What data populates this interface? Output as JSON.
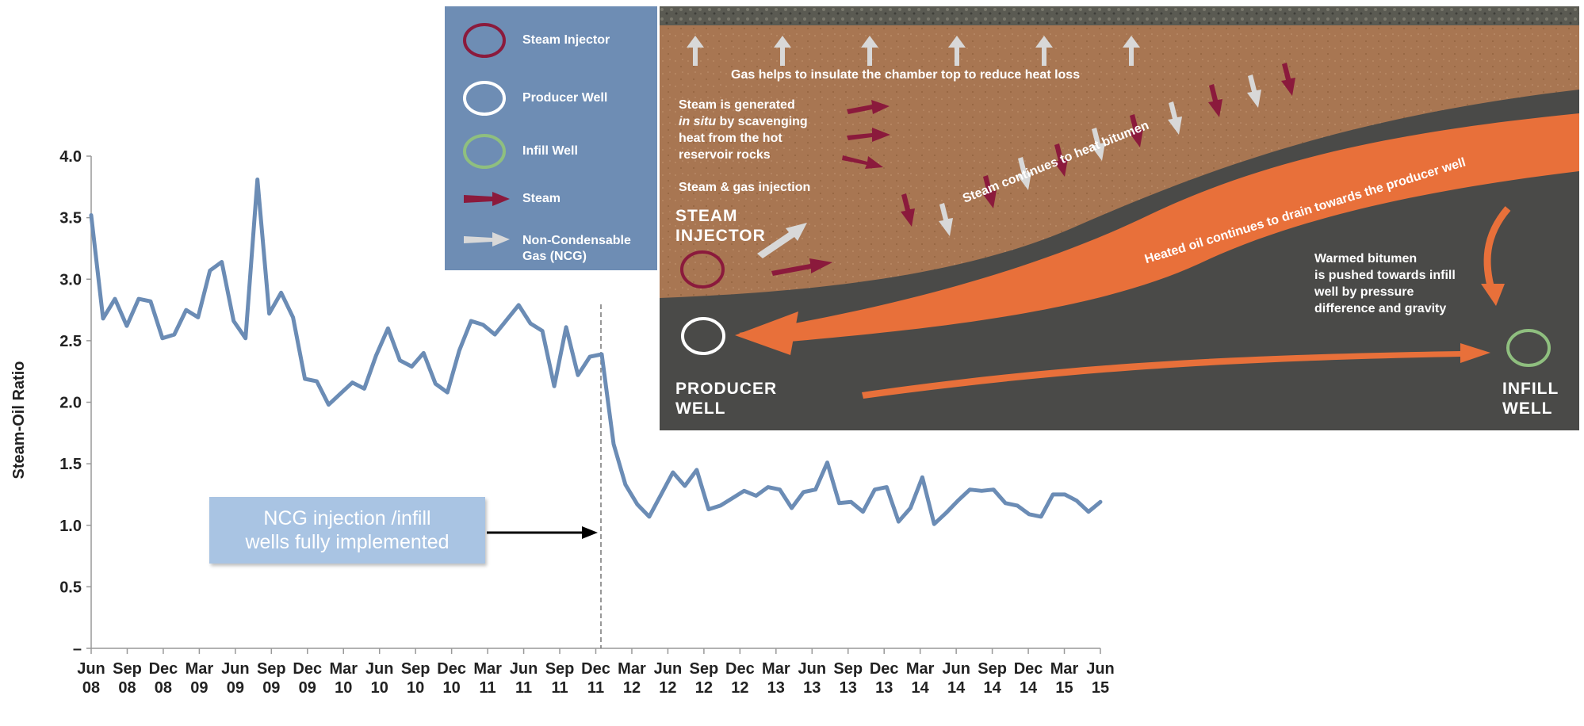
{
  "chart_data": {
    "type": "line",
    "ylabel": "Steam-Oil Ratio",
    "xlabel": "",
    "y_ticks": [
      "4.0",
      "3.5",
      "3.0",
      "2.5",
      "2.0",
      "1.5",
      "1.0",
      "0.5",
      "–"
    ],
    "ylim": [
      0,
      4.0
    ],
    "x_tick_labels": [
      [
        "Jun",
        "08"
      ],
      [
        "Sep",
        "08"
      ],
      [
        "Dec",
        "08"
      ],
      [
        "Mar",
        "09"
      ],
      [
        "Jun",
        "09"
      ],
      [
        "Sep",
        "09"
      ],
      [
        "Dec",
        "09"
      ],
      [
        "Mar",
        "10"
      ],
      [
        "Jun",
        "10"
      ],
      [
        "Sep",
        "10"
      ],
      [
        "Dec",
        "10"
      ],
      [
        "Mar",
        "11"
      ],
      [
        "Jun",
        "11"
      ],
      [
        "Sep",
        "11"
      ],
      [
        "Dec",
        "11"
      ],
      [
        "Mar",
        "12"
      ],
      [
        "Jun",
        "12"
      ],
      [
        "Sep",
        "12"
      ],
      [
        "Dec",
        "12"
      ],
      [
        "Mar",
        "13"
      ],
      [
        "Jun",
        "13"
      ],
      [
        "Sep",
        "13"
      ],
      [
        "Dec",
        "13"
      ],
      [
        "Mar",
        "14"
      ],
      [
        "Jun",
        "14"
      ],
      [
        "Sep",
        "14"
      ],
      [
        "Dec",
        "14"
      ],
      [
        "Mar",
        "15"
      ],
      [
        "Jun",
        "15"
      ]
    ],
    "series": [
      {
        "values": [
          3.52,
          2.68,
          2.84,
          2.62,
          2.84,
          2.82,
          2.52,
          2.55,
          2.75,
          2.69,
          3.07,
          3.14,
          2.66,
          2.52,
          3.81,
          2.72,
          2.89,
          2.69,
          2.19,
          2.17,
          1.98,
          2.07,
          2.16,
          2.11,
          2.38,
          2.6,
          2.34,
          2.29,
          2.4,
          2.15,
          2.08,
          2.42,
          2.66,
          2.63,
          2.55,
          2.67,
          2.79,
          2.64,
          2.58,
          2.13,
          2.61,
          2.22,
          2.37,
          2.39,
          1.66,
          1.33,
          1.17,
          1.07,
          1.25,
          1.43,
          1.32,
          1.45,
          1.13,
          1.16,
          1.22,
          1.28,
          1.24,
          1.31,
          1.29,
          1.14,
          1.27,
          1.29,
          1.51,
          1.18,
          1.19,
          1.11,
          1.29,
          1.31,
          1.03,
          1.14,
          1.39,
          1.01,
          1.1,
          1.2,
          1.29,
          1.28,
          1.29,
          1.18,
          1.16,
          1.09,
          1.07,
          1.25,
          1.25,
          1.2,
          1.11,
          1.19
        ],
        "color": "#6b8cb5"
      }
    ],
    "annotation": {
      "lines": [
        "NCG injection /infill",
        "wells fully implemented"
      ],
      "marker_at": "Dec 11"
    },
    "grid": false
  },
  "legend": {
    "items": [
      {
        "label": "Steam Injector",
        "icon": "steam-injector-circle-icon",
        "color": "#8b1a3c"
      },
      {
        "label": "Producer Well",
        "icon": "producer-well-circle-icon",
        "color": "#ffffff"
      },
      {
        "label": "Infill Well",
        "icon": "infill-well-circle-icon",
        "color": "#8fbf7f"
      },
      {
        "label": "Steam",
        "icon": "steam-arrow-icon",
        "color": "#8b1a3c"
      },
      {
        "label": "Non-Condensable Gas (NCG)",
        "icon": "ncg-arrow-icon",
        "color": "#d8d8d8"
      }
    ]
  },
  "diagram": {
    "gas_note": "Gas helps to insulate the chamber top to reduce heat loss",
    "steam_generated": [
      "Steam is generated",
      "in situ",
      " by scavenging",
      "heat from the hot",
      "reservoir rocks"
    ],
    "steam_gas_injection": "Steam & gas injection",
    "steam_injector": [
      "STEAM",
      "INJECTOR"
    ],
    "steam_heats": "Steam continues to heat bitumen",
    "heated_oil": "Heated oil continues to drain towards the producer well",
    "warmed_bitumen": [
      "Warmed bitumen",
      "is pushed towards infill",
      "well by pressure",
      "difference and gravity"
    ],
    "producer_well": [
      "PRODUCER",
      "WELL"
    ],
    "infill_well": [
      "INFILL",
      "WELL"
    ],
    "colors": {
      "rock": "#a87652",
      "shale": "#4a4a48",
      "oil": "#e8703a",
      "steam": "#8b1a3c",
      "gas": "#d8d8d8"
    }
  }
}
